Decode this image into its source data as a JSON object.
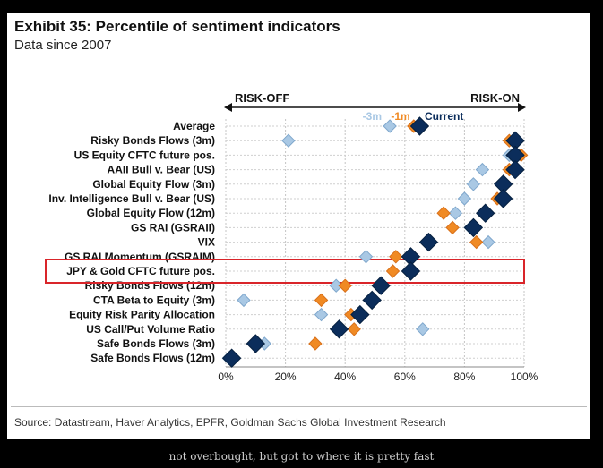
{
  "title": "Exhibit 35: Percentile of sentiment indicators",
  "subtitle": "Data since 2007",
  "source": "Source: Datastream, Haver Analytics, EPFR, Goldman Sachs Global Investment Research",
  "caption": "not overbought, but got to where it is pretty fast",
  "colors": {
    "minus3m": "#a9c8e4",
    "minus1m": "#f08a24",
    "current": "#0b2d5b",
    "highlight": "#d9252a"
  },
  "chart_data": {
    "type": "scatter",
    "xlim": [
      0,
      100
    ],
    "x_ticks": [
      "0%",
      "20%",
      "40%",
      "60%",
      "80%",
      "100%"
    ],
    "risk_off_label": "RISK-OFF",
    "risk_on_label": "RISK-ON",
    "legend": {
      "minus3m": "-3m",
      "minus1m": "-1m",
      "current": "Current"
    },
    "highlighted_category": "JPY & Gold CFTC future pos.",
    "categories": [
      "Average",
      "Risky Bonds Flows (3m)",
      "US Equity CFTC future pos.",
      "AAII Bull v. Bear (US)",
      "Global Equity Flow (3m)",
      "Inv. Intelligence Bull v. Bear (US)",
      "Global Equity Flow (12m)",
      "GS RAI (GSRAII)",
      "VIX",
      "GS RAI Momentum (GSRAIM)",
      "JPY & Gold CFTC future pos.",
      "Risky Bonds Flows (12m)",
      "CTA Beta to Equity (3m)",
      "Equity Risk Parity Allocation",
      "US Call/Put Volume Ratio",
      "Safe Bonds Flows (3m)",
      "Safe Bonds Flows (12m)"
    ],
    "series": [
      {
        "name": "-3m",
        "values": [
          55,
          21,
          95,
          86,
          83,
          80,
          77,
          82,
          88,
          47,
          62,
          37,
          6,
          32,
          66,
          13,
          1
        ]
      },
      {
        "name": "-1m",
        "values": [
          63,
          95,
          99,
          95,
          93,
          91,
          73,
          76,
          84,
          57,
          56,
          40,
          32,
          42,
          43,
          30,
          2
        ]
      },
      {
        "name": "Current",
        "values": [
          65,
          97,
          97,
          97,
          93,
          93,
          87,
          83,
          68,
          62,
          62,
          52,
          49,
          45,
          38,
          10,
          2
        ]
      }
    ]
  }
}
